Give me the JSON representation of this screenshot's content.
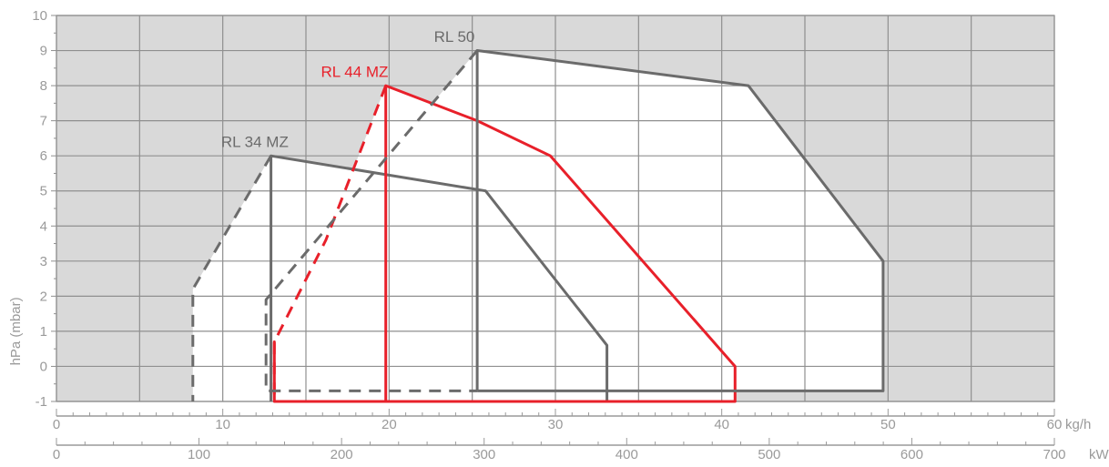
{
  "chart_data": {
    "type": "line",
    "title": "",
    "ylabel": "hPa (mbar)",
    "xlabel_kgh": "kg/h",
    "xlabel_kw": "kW",
    "ylim": [
      -1,
      10
    ],
    "xlim_kgh": [
      0,
      60
    ],
    "xlim_kw": [
      0,
      700
    ],
    "y_ticks": [
      -1,
      0,
      1,
      2,
      3,
      4,
      5,
      6,
      7,
      8,
      9,
      10
    ],
    "x_ticks_kgh": [
      0,
      10,
      20,
      30,
      40,
      50,
      60
    ],
    "x_ticks_kw": [
      0,
      100,
      200,
      300,
      400,
      500,
      600,
      700
    ],
    "background_color": "#d9d9d9",
    "grid": true,
    "series": [
      {
        "name": "RL 34 MZ",
        "color": "#6b6b6b",
        "solid": [
          [
            12.9,
            -1
          ],
          [
            12.9,
            6
          ],
          [
            25.8,
            5
          ],
          [
            33.1,
            0.6
          ],
          [
            33.1,
            -1
          ]
        ],
        "dashed": [
          [
            12.9,
            6
          ],
          [
            8.2,
            2.2
          ],
          [
            8.2,
            -1
          ]
        ]
      },
      {
        "name": "RL 44 MZ",
        "color": "#e8202a",
        "solid": [
          [
            13.1,
            -1
          ],
          [
            13.1,
            0.7
          ],
          [
            13.1,
            -0.7
          ],
          [
            13.1,
            -1
          ],
          [
            19.8,
            -1
          ],
          [
            19.8,
            8
          ],
          [
            25.3,
            7
          ],
          [
            29.7,
            6
          ],
          [
            40.8,
            0
          ],
          [
            40.8,
            -1
          ],
          [
            19.8,
            -1
          ]
        ],
        "dashed": [
          [
            19.8,
            8
          ],
          [
            16.2,
            3.6
          ],
          [
            13.1,
            0.7
          ],
          [
            13.1,
            -1
          ]
        ]
      },
      {
        "name": "RL 50",
        "color": "#6b6b6b",
        "solid": [
          [
            25.3,
            -0.7
          ],
          [
            25.3,
            9
          ],
          [
            41.6,
            8
          ],
          [
            49.7,
            3
          ],
          [
            49.7,
            -0.7
          ],
          [
            25.3,
            -0.7
          ]
        ],
        "dashed": [
          [
            25.3,
            9
          ],
          [
            12.6,
            1.9
          ],
          [
            12.6,
            -0.7
          ],
          [
            25.3,
            -0.7
          ]
        ]
      }
    ]
  }
}
